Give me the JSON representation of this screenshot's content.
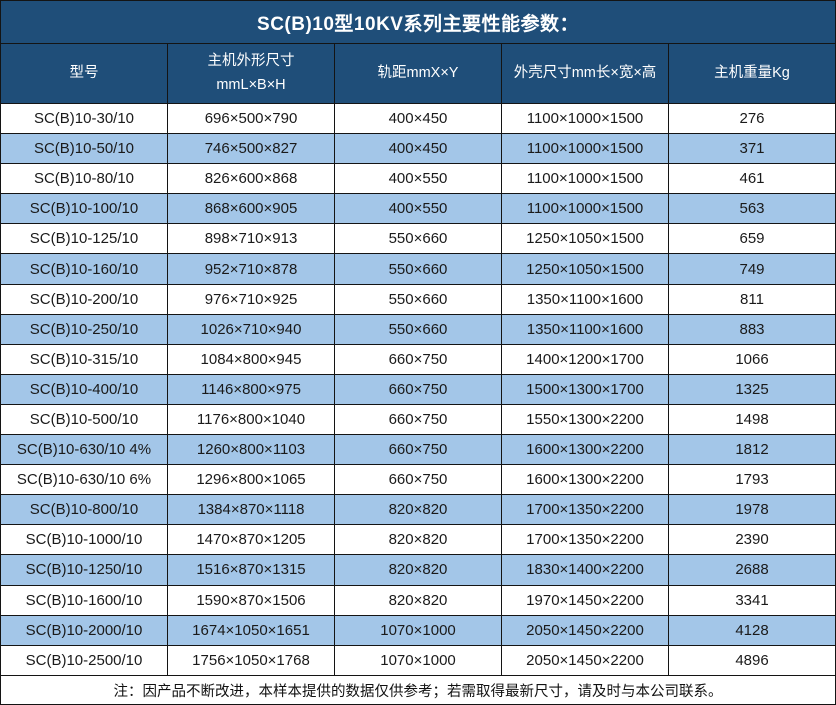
{
  "title": "SC(B)10型10KV系列主要性能参数：",
  "colors": {
    "header_bg": "#1F4E79",
    "header_text": "#FFFFFF",
    "row_alt_bg": "#A3C6E8",
    "row_bg": "#FFFFFF",
    "border": "#141414",
    "body_text": "#1A1A1A"
  },
  "table": {
    "headers": [
      "型号",
      "主机外形尺寸\nmmL×B×H",
      "轨距mmX×Y",
      "外壳尺寸mm长×宽×高",
      "主机重量Kg"
    ],
    "rows": [
      [
        "SC(B)10-30/10",
        "696×500×790",
        "400×450",
        "1100×1000×1500",
        "276"
      ],
      [
        "SC(B)10-50/10",
        "746×500×827",
        "400×450",
        "1100×1000×1500",
        "371"
      ],
      [
        "SC(B)10-80/10",
        "826×600×868",
        "400×550",
        "1100×1000×1500",
        "461"
      ],
      [
        "SC(B)10-100/10",
        "868×600×905",
        "400×550",
        "1100×1000×1500",
        "563"
      ],
      [
        "SC(B)10-125/10",
        "898×710×913",
        "550×660",
        "1250×1050×1500",
        "659"
      ],
      [
        "SC(B)10-160/10",
        "952×710×878",
        "550×660",
        "1250×1050×1500",
        "749"
      ],
      [
        "SC(B)10-200/10",
        "976×710×925",
        "550×660",
        "1350×1100×1600",
        "811"
      ],
      [
        "SC(B)10-250/10",
        "1026×710×940",
        "550×660",
        "1350×1100×1600",
        "883"
      ],
      [
        "SC(B)10-315/10",
        "1084×800×945",
        "660×750",
        "1400×1200×1700",
        "1066"
      ],
      [
        "SC(B)10-400/10",
        "1146×800×975",
        "660×750",
        "1500×1300×1700",
        "1325"
      ],
      [
        "SC(B)10-500/10",
        "1176×800×1040",
        "660×750",
        "1550×1300×2200",
        "1498"
      ],
      [
        "SC(B)10-630/10 4%",
        "1260×800×1103",
        "660×750",
        "1600×1300×2200",
        "1812"
      ],
      [
        "SC(B)10-630/10 6%",
        "1296×800×1065",
        "660×750",
        "1600×1300×2200",
        "1793"
      ],
      [
        "SC(B)10-800/10",
        "1384×870×1118",
        "820×820",
        "1700×1350×2200",
        "1978"
      ],
      [
        "SC(B)10-1000/10",
        "1470×870×1205",
        "820×820",
        "1700×1350×2200",
        "2390"
      ],
      [
        "SC(B)10-1250/10",
        "1516×870×1315",
        "820×820",
        "1830×1400×2200",
        "2688"
      ],
      [
        "SC(B)10-1600/10",
        "1590×870×1506",
        "820×820",
        "1970×1450×2200",
        "3341"
      ],
      [
        "SC(B)10-2000/10",
        "1674×1050×1651",
        "1070×1000",
        "2050×1450×2200",
        "4128"
      ],
      [
        "SC(B)10-2500/10",
        "1756×1050×1768",
        "1070×1000",
        "2050×1450×2200",
        "4896"
      ]
    ]
  },
  "footer": {
    "note": "注：因产品不断改进，本样本提供的数据仅供参考；若需取得最新尺寸，请及时与本公司联系。"
  }
}
